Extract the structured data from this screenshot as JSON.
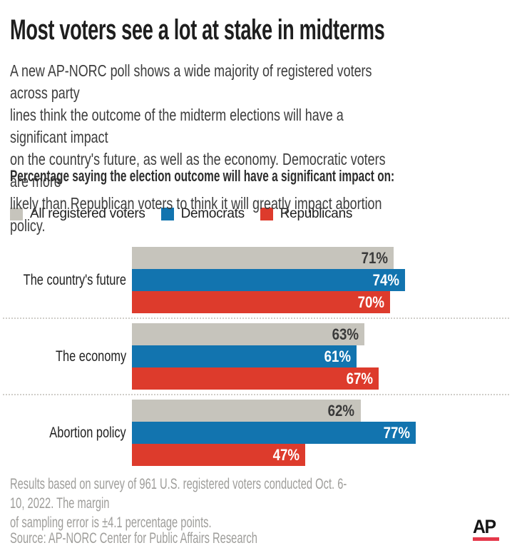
{
  "header": {
    "title": "Most voters see a lot at stake in midterms",
    "intro_lines": [
      "A new AP-NORC poll shows a wide majority of registered voters across party",
      "lines think the outcome of the midterm elections will have a significant impact",
      "on the country's future, as well as the economy. Democratic voters are more",
      "likely than Republican voters to think it will greatly impact abortion policy."
    ],
    "chart_heading": "Percentage saying the election outcome will have a significant impact on:"
  },
  "legend": {
    "items": [
      {
        "label": "All registered voters",
        "color": "#c6c4bc"
      },
      {
        "label": "Democrats",
        "color": "#1274af"
      },
      {
        "label": "Republicans",
        "color": "#dd3b2c"
      }
    ]
  },
  "chart_data": {
    "type": "bar",
    "orientation": "horizontal",
    "unit": "%",
    "title": "Percentage saying the election outcome will have a significant impact on:",
    "categories": [
      "The country's future",
      "The economy",
      "Abortion policy"
    ],
    "series": [
      {
        "name": "All registered voters",
        "color": "#c6c4bc",
        "value_label_color": "#3a3a3a",
        "values": [
          71,
          63,
          62
        ]
      },
      {
        "name": "Democrats",
        "color": "#1274af",
        "value_label_color": "#ffffff",
        "values": [
          74,
          61,
          77
        ]
      },
      {
        "name": "Republicans",
        "color": "#dd3b2c",
        "value_label_color": "#ffffff",
        "values": [
          70,
          67,
          47
        ]
      }
    ],
    "xlim": [
      0,
      100
    ],
    "value_labels": "inside-right",
    "grid": false,
    "legend_position": "top",
    "group_separator": "dotted"
  },
  "footer": {
    "note_lines": [
      "Results based on survey of 961 U.S. registered voters conducted Oct. 6-10, 2022. The margin",
      "of sampling error is ±4.1 percentage points."
    ],
    "source": "Source: AP-NORC Center for Public Affairs Research",
    "logo_text": "AP",
    "logo_underline_color": "#e5394b"
  }
}
